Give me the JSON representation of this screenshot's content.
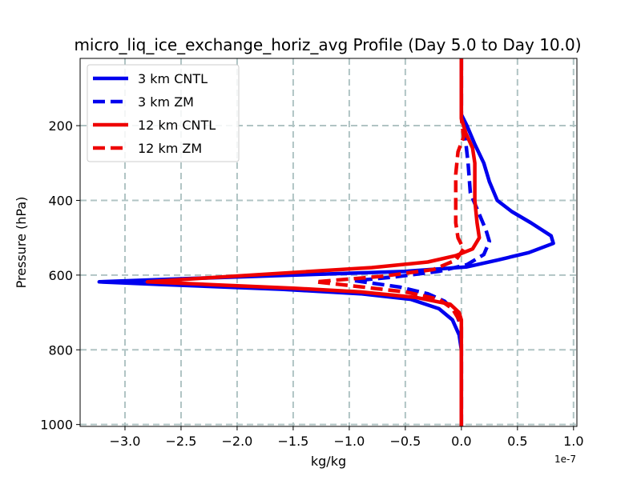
{
  "chart_data": {
    "type": "line",
    "title": "micro_liq_ice_exchange_horiz_avg Profile (Day 5.0 to Day 10.0)",
    "xlabel": "kg/kg",
    "ylabel": "Pressure (hPa)",
    "x_offset_label": "1e-7",
    "xlim": [
      -3.4,
      1.03
    ],
    "ylim": [
      1005,
      20
    ],
    "y_inverted": true,
    "xticks": [
      -3.0,
      -2.5,
      -2.0,
      -1.5,
      -1.0,
      -0.5,
      0.0,
      0.5,
      1.0
    ],
    "xtick_labels": [
      "−3.0",
      "−2.5",
      "−2.0",
      "−1.5",
      "−1.0",
      "−0.5",
      "0.0",
      "0.5",
      "1.0"
    ],
    "yticks": [
      200,
      400,
      600,
      800,
      1000
    ],
    "ytick_labels": [
      "200",
      "400",
      "600",
      "800",
      "1000"
    ],
    "grid": true,
    "legend_position": "top-left",
    "series": [
      {
        "name": "3 km CNTL",
        "color": "#0000ee",
        "style": "solid",
        "points": [
          [
            0,
            20
          ],
          [
            0,
            100
          ],
          [
            0,
            170
          ],
          [
            0.05,
            200
          ],
          [
            0.12,
            250
          ],
          [
            0.2,
            300
          ],
          [
            0.25,
            350
          ],
          [
            0.32,
            400
          ],
          [
            0.45,
            430
          ],
          [
            0.62,
            460
          ],
          [
            0.8,
            495
          ],
          [
            0.82,
            515
          ],
          [
            0.6,
            540
          ],
          [
            0.32,
            560
          ],
          [
            0.05,
            578
          ],
          [
            -0.5,
            590
          ],
          [
            -1.5,
            600
          ],
          [
            -2.5,
            610
          ],
          [
            -3.23,
            618
          ],
          [
            -2.7,
            625
          ],
          [
            -1.6,
            638
          ],
          [
            -0.9,
            650
          ],
          [
            -0.45,
            665
          ],
          [
            -0.2,
            690
          ],
          [
            -0.08,
            720
          ],
          [
            -0.02,
            760
          ],
          [
            0,
            800
          ],
          [
            0,
            900
          ],
          [
            0,
            1005
          ]
        ]
      },
      {
        "name": "3 km ZM",
        "color": "#0000ee",
        "style": "dashed",
        "points": [
          [
            0,
            20
          ],
          [
            0,
            170
          ],
          [
            0.03,
            220
          ],
          [
            0.06,
            300
          ],
          [
            0.08,
            380
          ],
          [
            0.15,
            430
          ],
          [
            0.22,
            480
          ],
          [
            0.25,
            510
          ],
          [
            0.2,
            545
          ],
          [
            0.05,
            572
          ],
          [
            -0.2,
            590
          ],
          [
            -0.6,
            605
          ],
          [
            -0.95,
            615
          ],
          [
            -0.55,
            632
          ],
          [
            -0.3,
            650
          ],
          [
            -0.15,
            670
          ],
          [
            -0.05,
            700
          ],
          [
            0,
            740
          ],
          [
            0,
            1005
          ]
        ]
      },
      {
        "name": "12 km CNTL",
        "color": "#ee0000",
        "style": "solid",
        "points": [
          [
            0,
            20
          ],
          [
            0,
            100
          ],
          [
            0,
            180
          ],
          [
            0.04,
            220
          ],
          [
            0.1,
            260
          ],
          [
            0.12,
            300
          ],
          [
            0.12,
            400
          ],
          [
            0.14,
            460
          ],
          [
            0.16,
            500
          ],
          [
            0.1,
            530
          ],
          [
            -0.05,
            548
          ],
          [
            -0.3,
            565
          ],
          [
            -0.8,
            580
          ],
          [
            -1.6,
            595
          ],
          [
            -2.3,
            608
          ],
          [
            -2.8,
            618
          ],
          [
            -2.2,
            626
          ],
          [
            -1.5,
            635
          ],
          [
            -0.9,
            645
          ],
          [
            -0.4,
            660
          ],
          [
            -0.1,
            678
          ],
          [
            -0.02,
            700
          ],
          [
            0,
            720
          ],
          [
            0,
            800
          ],
          [
            0,
            1005
          ]
        ]
      },
      {
        "name": "12 km ZM",
        "color": "#ee0000",
        "style": "dashed",
        "points": [
          [
            0,
            20
          ],
          [
            0,
            180
          ],
          [
            0.02,
            230
          ],
          [
            -0.03,
            270
          ],
          [
            -0.05,
            330
          ],
          [
            -0.05,
            400
          ],
          [
            -0.05,
            460
          ],
          [
            -0.03,
            500
          ],
          [
            0.02,
            530
          ],
          [
            -0.05,
            560
          ],
          [
            -0.25,
            585
          ],
          [
            -0.7,
            603
          ],
          [
            -1.3,
            618
          ],
          [
            -1.0,
            628
          ],
          [
            -0.5,
            645
          ],
          [
            -0.2,
            665
          ],
          [
            -0.08,
            690
          ],
          [
            0,
            730
          ],
          [
            0,
            1005
          ]
        ]
      }
    ]
  }
}
